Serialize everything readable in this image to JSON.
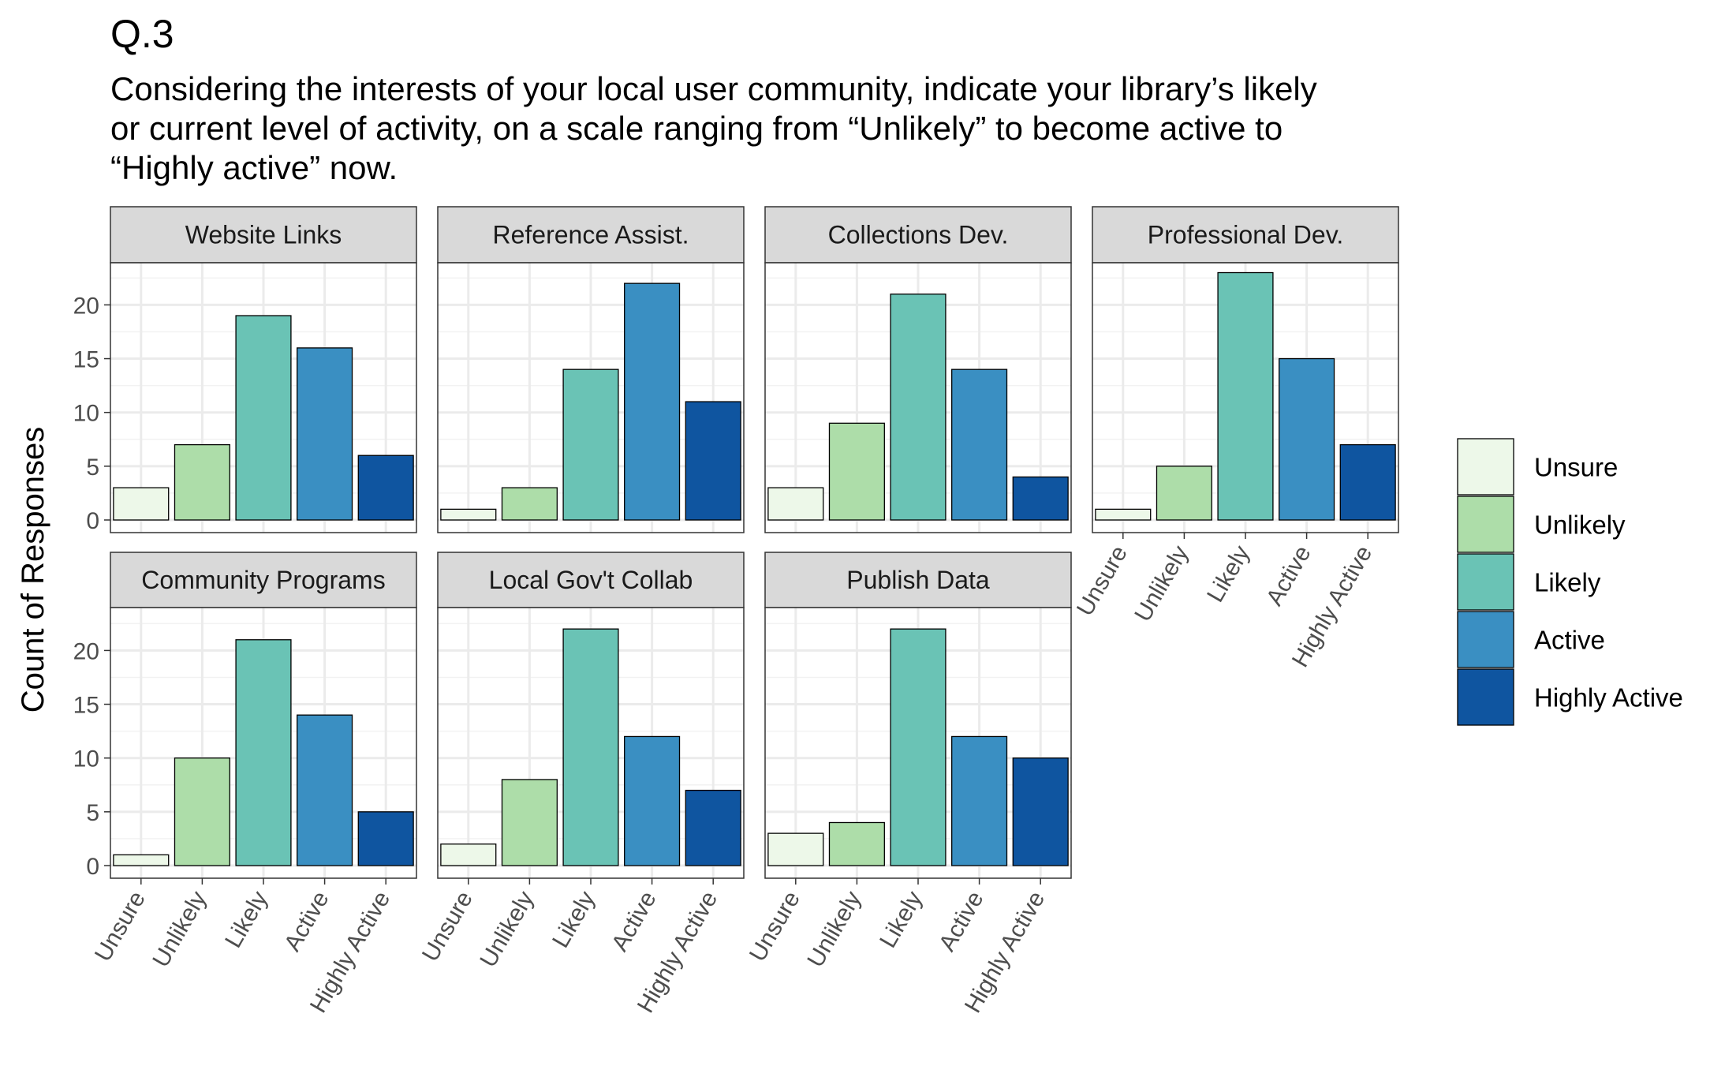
{
  "title": "Q.3",
  "subtitle_lines": [
    "Considering the interests of your local user community, indicate your library’s likely",
    "or current level of activity, on a scale ranging from “Unlikely” to become active to",
    "“Highly active” now."
  ],
  "chart_data": {
    "type": "bar",
    "ylabel": "Count of Responses",
    "xlabel": "",
    "ylim": [
      0,
      24
    ],
    "yticks": [
      0,
      5,
      10,
      15,
      20
    ],
    "grid": true,
    "legend_position": "right",
    "categories": [
      "Unsure",
      "Unlikely",
      "Likely",
      "Active",
      "Highly Active"
    ],
    "colors": [
      "#EDF8E9",
      "#ADDDA9",
      "#6AC3B5",
      "#3A8FC2",
      "#0F55A0"
    ],
    "panels": [
      {
        "name": "Website Links",
        "values": [
          3,
          7,
          19,
          16,
          6
        ]
      },
      {
        "name": "Reference Assist.",
        "values": [
          1,
          3,
          14,
          22,
          11
        ]
      },
      {
        "name": "Collections Dev.",
        "values": [
          3,
          9,
          21,
          14,
          4
        ]
      },
      {
        "name": "Professional Dev.",
        "values": [
          1,
          5,
          23,
          15,
          7
        ]
      },
      {
        "name": "Community Programs",
        "values": [
          1,
          10,
          21,
          14,
          5
        ]
      },
      {
        "name": "Local Gov't Collab",
        "values": [
          2,
          8,
          22,
          12,
          7
        ]
      },
      {
        "name": "Publish Data",
        "values": [
          3,
          4,
          22,
          12,
          10
        ]
      }
    ],
    "legend": [
      "Unsure",
      "Unlikely",
      "Likely",
      "Active",
      "Highly Active"
    ]
  }
}
